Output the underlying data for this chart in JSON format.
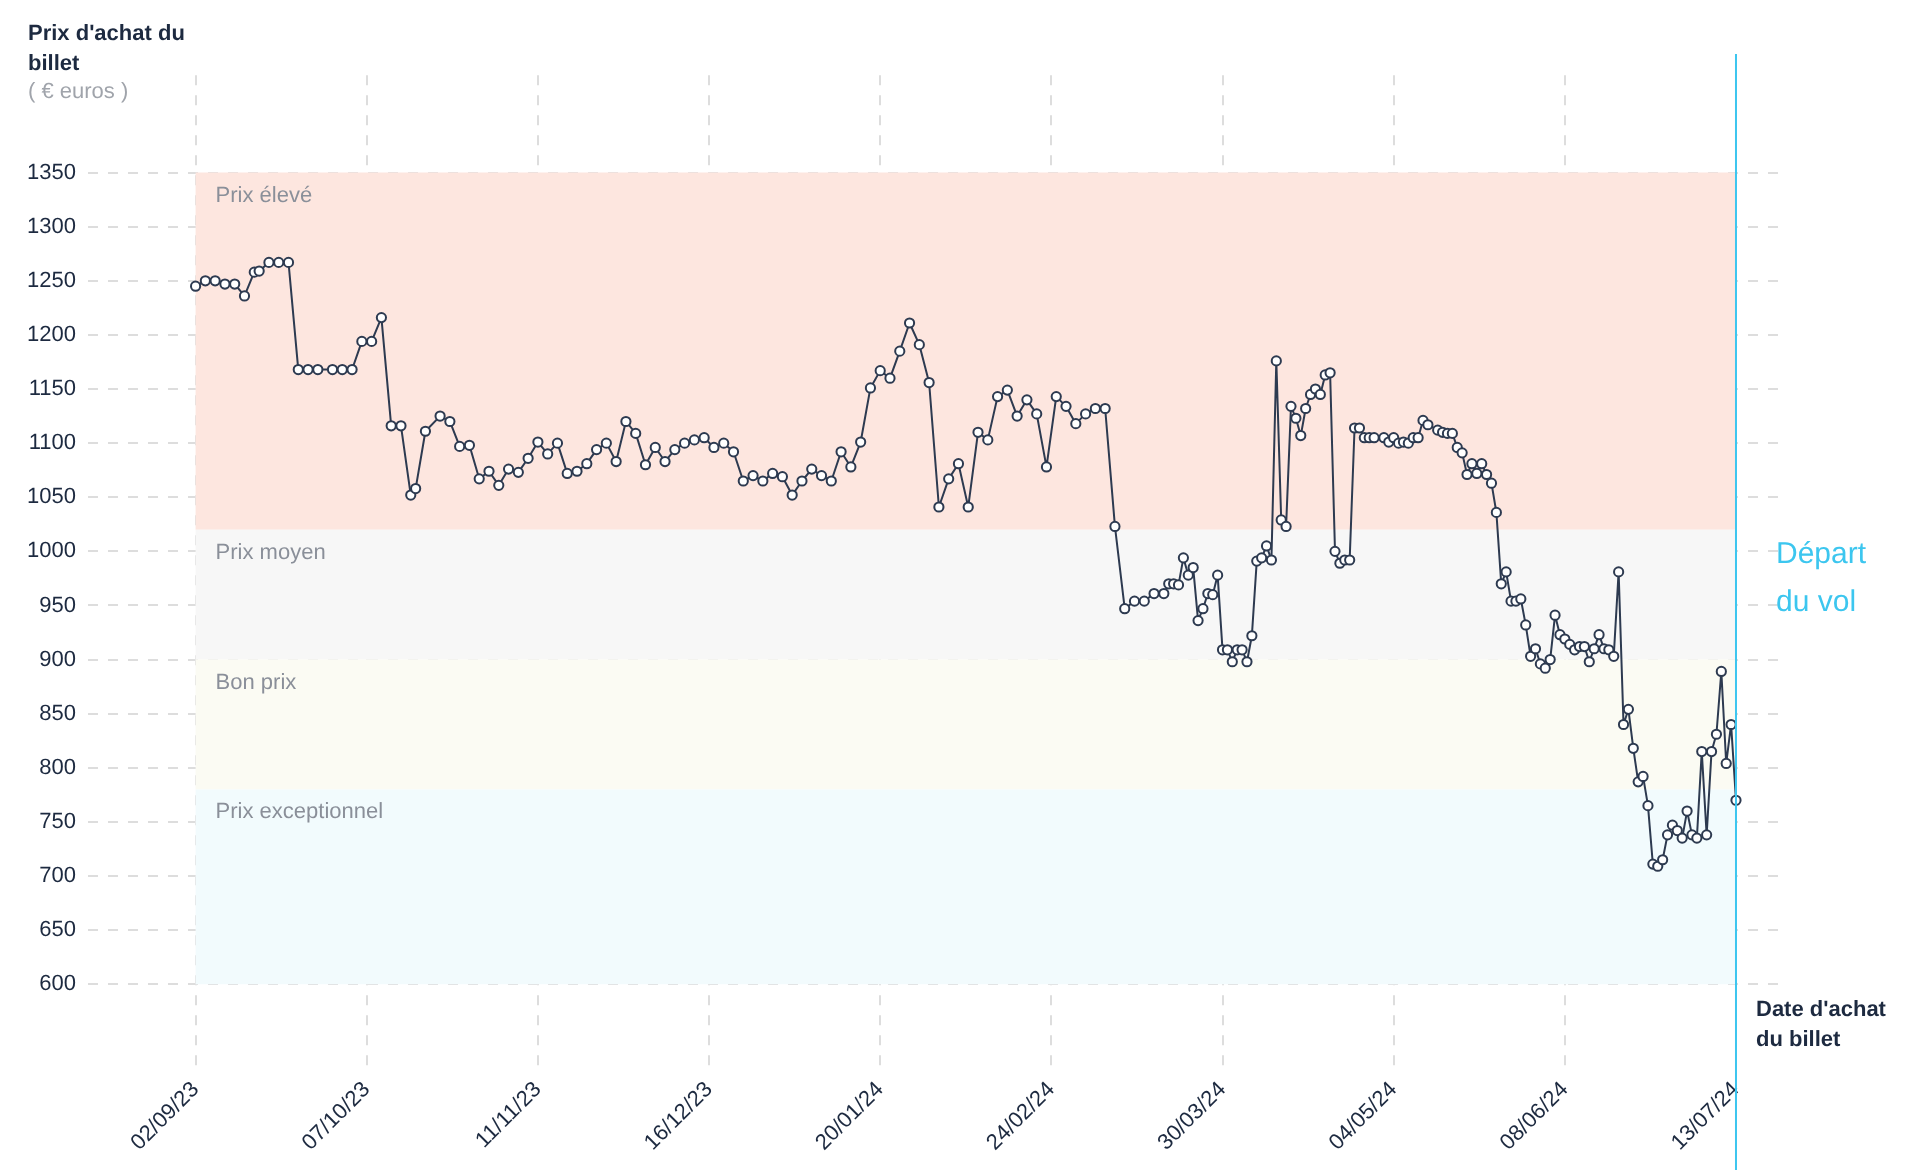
{
  "chart_data": {
    "type": "line",
    "ylabel": "Prix d'achat du billet",
    "xlabel": "Date d'achat du billet",
    "annotations": [
      "( € euros )"
    ],
    "x": [
      "2023-09-02",
      "2023-09-04",
      "2023-09-06",
      "2023-09-08",
      "2023-09-10",
      "2023-09-12",
      "2023-09-14",
      "2023-09-15",
      "2023-09-17",
      "2023-09-19",
      "2023-09-21",
      "2023-09-23",
      "2023-09-25",
      "2023-09-27",
      "2023-09-30",
      "2023-10-02",
      "2023-10-04",
      "2023-10-06",
      "2023-10-08",
      "2023-10-10",
      "2023-10-12",
      "2023-10-14",
      "2023-10-16",
      "2023-10-17",
      "2023-10-19",
      "2023-10-22",
      "2023-10-24",
      "2023-10-26",
      "2023-10-28",
      "2023-10-30",
      "2023-11-01",
      "2023-11-03",
      "2023-11-05",
      "2023-11-07",
      "2023-11-09",
      "2023-11-11",
      "2023-11-13",
      "2023-11-15",
      "2023-11-17",
      "2023-11-19",
      "2023-11-21",
      "2023-11-23",
      "2023-11-25",
      "2023-11-27",
      "2023-11-29",
      "2023-12-01",
      "2023-12-03",
      "2023-12-05",
      "2023-12-07",
      "2023-12-09",
      "2023-12-11",
      "2023-12-13",
      "2023-12-15",
      "2023-12-17",
      "2023-12-19",
      "2023-12-21",
      "2023-12-23",
      "2023-12-25",
      "2023-12-27",
      "2023-12-29",
      "2023-12-31",
      "2024-01-02",
      "2024-01-04",
      "2024-01-06",
      "2024-01-08",
      "2024-01-10",
      "2024-01-12",
      "2024-01-14",
      "2024-01-16",
      "2024-01-18",
      "2024-01-20",
      "2024-01-22",
      "2024-01-24",
      "2024-01-26",
      "2024-01-28",
      "2024-01-30",
      "2024-02-01",
      "2024-02-03",
      "2024-02-05",
      "2024-02-07",
      "2024-02-09",
      "2024-02-11",
      "2024-02-13",
      "2024-02-15",
      "2024-02-17",
      "2024-02-19",
      "2024-02-21",
      "2024-02-23",
      "2024-02-25",
      "2024-02-27",
      "2024-02-29",
      "2024-03-02",
      "2024-03-04",
      "2024-03-06",
      "2024-03-08",
      "2024-03-10",
      "2024-03-12",
      "2024-03-14",
      "2024-03-16",
      "2024-03-18",
      "2024-03-19",
      "2024-03-20",
      "2024-03-21",
      "2024-03-22",
      "2024-03-23",
      "2024-03-24",
      "2024-03-25",
      "2024-03-26",
      "2024-03-27",
      "2024-03-28",
      "2024-03-29",
      "2024-03-30",
      "2024-03-31",
      "2024-04-01",
      "2024-04-02",
      "2024-04-03",
      "2024-04-04",
      "2024-04-05",
      "2024-04-06",
      "2024-04-07",
      "2024-04-08",
      "2024-04-09",
      "2024-04-10",
      "2024-04-11",
      "2024-04-12",
      "2024-04-13",
      "2024-04-14",
      "2024-04-15",
      "2024-04-16",
      "2024-04-17",
      "2024-04-18",
      "2024-04-19",
      "2024-04-20",
      "2024-04-21",
      "2024-04-22",
      "2024-04-23",
      "2024-04-24",
      "2024-04-25",
      "2024-04-26",
      "2024-04-27",
      "2024-04-28",
      "2024-04-29",
      "2024-04-30",
      "2024-05-02",
      "2024-05-03",
      "2024-05-04",
      "2024-05-05",
      "2024-05-06",
      "2024-05-07",
      "2024-05-08",
      "2024-05-09",
      "2024-05-10",
      "2024-05-11",
      "2024-05-13",
      "2024-05-14",
      "2024-05-15",
      "2024-05-16",
      "2024-05-17",
      "2024-05-18",
      "2024-05-19",
      "2024-05-20",
      "2024-05-21",
      "2024-05-22",
      "2024-05-23",
      "2024-05-24",
      "2024-05-25",
      "2024-05-26",
      "2024-05-27",
      "2024-05-28",
      "2024-05-29",
      "2024-05-30",
      "2024-05-31",
      "2024-06-01",
      "2024-06-02",
      "2024-06-03",
      "2024-06-04",
      "2024-06-05",
      "2024-06-06",
      "2024-06-07",
      "2024-06-08",
      "2024-06-09",
      "2024-06-10",
      "2024-06-11",
      "2024-06-12",
      "2024-06-13",
      "2024-06-14",
      "2024-06-15",
      "2024-06-16",
      "2024-06-17",
      "2024-06-18",
      "2024-06-19",
      "2024-06-20",
      "2024-06-21",
      "2024-06-22",
      "2024-06-23",
      "2024-06-24",
      "2024-06-25",
      "2024-06-26",
      "2024-06-27",
      "2024-06-28",
      "2024-06-29",
      "2024-06-30",
      "2024-07-01",
      "2024-07-02",
      "2024-07-03",
      "2024-07-04",
      "2024-07-05",
      "2024-07-06",
      "2024-07-07",
      "2024-07-08",
      "2024-07-09",
      "2024-07-10",
      "2024-07-11",
      "2024-07-12",
      "2024-07-13"
    ],
    "series": [
      {
        "color": "#2d3a50",
        "values": [
          1245,
          1250,
          1250,
          1247,
          1247,
          1236,
          1258,
          1259,
          1267,
          1267,
          1267,
          1168,
          1168,
          1168,
          1168,
          1168,
          1168,
          1194,
          1194,
          1216,
          1116,
          1116,
          1052,
          1058,
          1111,
          1125,
          1120,
          1097,
          1098,
          1067,
          1074,
          1061,
          1076,
          1073,
          1086,
          1101,
          1090,
          1100,
          1072,
          1074,
          1081,
          1094,
          1100,
          1083,
          1120,
          1109,
          1080,
          1096,
          1083,
          1094,
          1100,
          1103,
          1105,
          1096,
          1100,
          1092,
          1065,
          1070,
          1065,
          1072,
          1069,
          1052,
          1065,
          1076,
          1070,
          1065,
          1092,
          1078,
          1101,
          1151,
          1167,
          1160,
          1185,
          1211,
          1191,
          1156,
          1041,
          1067,
          1081,
          1041,
          1110,
          1103,
          1143,
          1149,
          1125,
          1140,
          1127,
          1078,
          1143,
          1134,
          1118,
          1127,
          1132,
          1132,
          1023,
          947,
          954,
          954,
          961,
          961,
          970,
          970,
          969,
          994,
          978,
          985,
          936,
          947,
          961,
          960,
          978,
          909,
          909,
          898,
          909,
          909,
          898,
          922,
          991,
          994,
          1005,
          992,
          1176,
          1029,
          1023,
          1134,
          1123,
          1107,
          1132,
          1145,
          1150,
          1145,
          1163,
          1165,
          1000,
          989,
          992,
          992,
          1114,
          1114,
          1105,
          1105,
          1105,
          1105,
          1101,
          1105,
          1100,
          1101,
          1100,
          1105,
          1105,
          1121,
          1117,
          1112,
          1110,
          1109,
          1109,
          1096,
          1091,
          1071,
          1081,
          1072,
          1081,
          1071,
          1063,
          1036,
          970,
          981,
          954,
          954,
          956,
          932,
          903,
          910,
          896,
          892,
          900,
          941,
          923,
          919,
          914,
          909,
          912,
          912,
          898,
          910,
          923,
          910,
          909,
          903,
          981,
          840,
          854,
          818,
          787,
          792,
          765,
          711,
          709,
          715,
          738,
          747,
          742,
          735,
          760,
          738,
          735,
          815,
          738,
          815,
          831,
          889,
          804,
          840,
          770
        ]
      }
    ],
    "xlim": [
      "2023-08-11",
      "2024-07-22"
    ],
    "xticks": [
      {
        "value": "2023-09-02",
        "label": "02/09/23"
      },
      {
        "value": "2023-10-07",
        "label": "07/10/23"
      },
      {
        "value": "2023-11-11",
        "label": "11/11/23"
      },
      {
        "value": "2023-12-16",
        "label": "16/12/23"
      },
      {
        "value": "2024-01-20",
        "label": "20/01/24"
      },
      {
        "value": "2024-02-24",
        "label": "24/02/24"
      },
      {
        "value": "2024-03-30",
        "label": "30/03/24"
      },
      {
        "value": "2024-05-04",
        "label": "04/05/24"
      },
      {
        "value": "2024-06-08",
        "label": "08/06/24"
      },
      {
        "value": "2024-07-13",
        "label": "13/07/24"
      }
    ],
    "ylim": [
      520,
      1440
    ],
    "yticks": [
      600,
      650,
      700,
      750,
      800,
      850,
      900,
      950,
      1000,
      1050,
      1100,
      1150,
      1200,
      1250,
      1300,
      1350
    ],
    "grid": true,
    "marker": "circle",
    "line_style": "solid",
    "bands": [
      {
        "axis": "y",
        "from": 1020,
        "to": 1350,
        "label": "Prix élevé",
        "color": "#fde6df"
      },
      {
        "axis": "y",
        "from": 900,
        "to": 1020,
        "label": "Prix moyen",
        "color": "#f7f7f7"
      },
      {
        "axis": "y",
        "from": 780,
        "to": 900,
        "label": "Bon prix",
        "color": "#fbfbf3"
      },
      {
        "axis": "y",
        "from": 600,
        "to": 780,
        "label": "Prix exceptionnel",
        "color": "#f2fbfd"
      }
    ],
    "ref_lines": [
      {
        "axis": "x",
        "value": "2024-07-13",
        "label": "Départ du vol",
        "color": "#3cc6ef"
      }
    ]
  }
}
